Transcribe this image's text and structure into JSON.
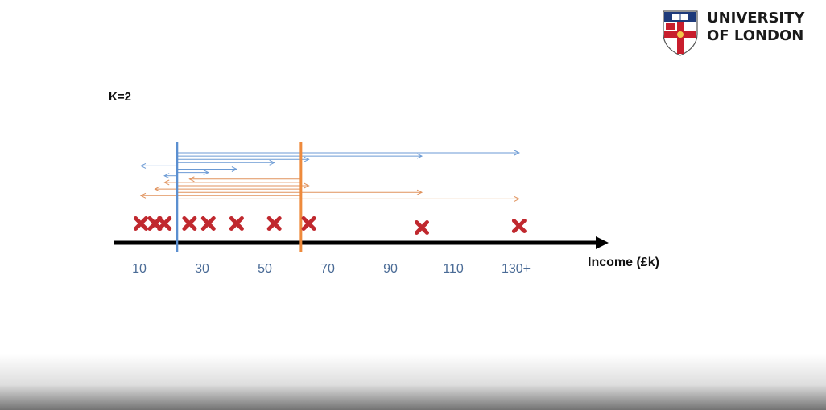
{
  "logo": {
    "line1": "UNIVERSITY",
    "line2": "OF LONDON"
  },
  "heading": "K=2",
  "axis": {
    "title": "Income (£k)",
    "tick_labels": [
      "10",
      "30",
      "50",
      "70",
      "90",
      "110",
      "130+"
    ],
    "tick_values": [
      10,
      30,
      50,
      70,
      90,
      110,
      130
    ]
  },
  "colors": {
    "point": "#c0282e",
    "centroid1": "#5b8fd0",
    "centroid2": "#ee8a3c",
    "arrow1": "#6b9ad4",
    "arrow2": "#e0925c",
    "axis": "#000000",
    "logo_red": "#c81e2d",
    "logo_blue": "#1e3a7a"
  },
  "diagram": {
    "points": [
      10.5,
      15,
      18,
      26,
      32,
      41,
      53,
      64,
      100,
      131
    ],
    "centroids": [
      {
        "value": 22,
        "color_key": "centroid1"
      },
      {
        "value": 61.5,
        "color_key": "centroid2"
      }
    ],
    "distance_arrows": [
      {
        "from": 22,
        "to": 131,
        "color_key": "arrow1"
      },
      {
        "from": 22,
        "to": 100,
        "color_key": "arrow1"
      },
      {
        "from": 22,
        "to": 64,
        "color_key": "arrow1"
      },
      {
        "from": 22,
        "to": 53,
        "color_key": "arrow1"
      },
      {
        "from": 22,
        "to": 10.5,
        "color_key": "arrow1"
      },
      {
        "from": 22,
        "to": 41,
        "color_key": "arrow1"
      },
      {
        "from": 22,
        "to": 32,
        "color_key": "arrow1"
      },
      {
        "from": 22,
        "to": 18,
        "color_key": "arrow1"
      },
      {
        "from": 61.5,
        "to": 26,
        "color_key": "arrow2"
      },
      {
        "from": 61.5,
        "to": 18,
        "color_key": "arrow2"
      },
      {
        "from": 22,
        "to": 64,
        "color_key": "arrow2"
      },
      {
        "from": 61.5,
        "to": 15,
        "color_key": "arrow2"
      },
      {
        "from": 22,
        "to": 100,
        "color_key": "arrow2"
      },
      {
        "from": 61.5,
        "to": 10.5,
        "color_key": "arrow2"
      },
      {
        "from": 22,
        "to": 131,
        "color_key": "arrow2"
      }
    ]
  }
}
